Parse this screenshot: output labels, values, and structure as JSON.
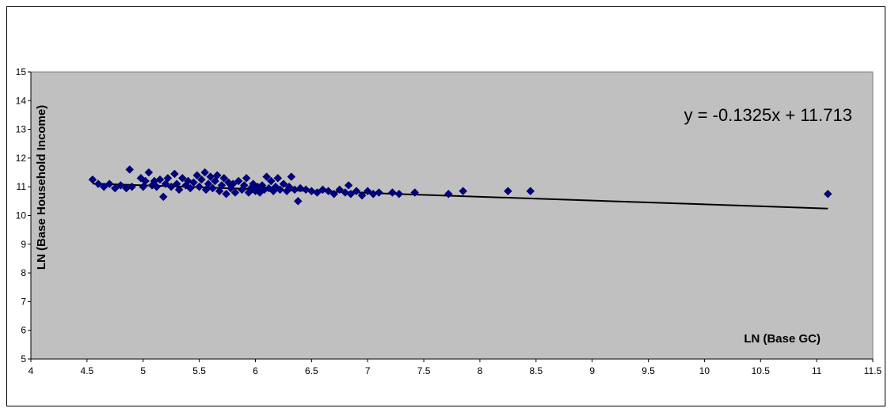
{
  "chart_data": {
    "type": "scatter",
    "title": "",
    "xlabel": "LN (Base GC)",
    "ylabel": "LN (Base Household Income)",
    "xlim": [
      4,
      11.5
    ],
    "ylim": [
      5,
      15
    ],
    "x_ticks": [
      "4",
      "4.5",
      "5",
      "5.5",
      "6",
      "6.5",
      "7",
      "7.5",
      "8",
      "8.5",
      "9",
      "9.5",
      "10",
      "10.5",
      "11",
      "11.5"
    ],
    "y_ticks": [
      "5",
      "6",
      "7",
      "8",
      "9",
      "10",
      "11",
      "12",
      "13",
      "14",
      "15"
    ],
    "grid": false,
    "legend": "none",
    "annotations": [
      {
        "text": "y = -0.1325x + 11.713"
      }
    ],
    "trendline": {
      "slope": -0.1325,
      "intercept": 11.713,
      "x_range": [
        4.55,
        11.1
      ]
    },
    "colors": {
      "plot_background": "#c0c0c0",
      "marker": "#000080",
      "trendline": "#000000"
    },
    "series": [
      {
        "marker": "diamond",
        "points": [
          [
            4.55,
            11.25
          ],
          [
            4.6,
            11.1
          ],
          [
            4.65,
            11.0
          ],
          [
            4.7,
            11.1
          ],
          [
            4.75,
            10.95
          ],
          [
            4.8,
            11.05
          ],
          [
            4.85,
            10.95
          ],
          [
            4.88,
            11.6
          ],
          [
            4.9,
            11.0
          ],
          [
            4.98,
            11.3
          ],
          [
            5.0,
            11.0
          ],
          [
            5.02,
            11.2
          ],
          [
            5.05,
            11.5
          ],
          [
            5.08,
            11.05
          ],
          [
            5.1,
            11.2
          ],
          [
            5.12,
            11.0
          ],
          [
            5.15,
            11.25
          ],
          [
            5.18,
            10.65
          ],
          [
            5.2,
            11.1
          ],
          [
            5.22,
            11.3
          ],
          [
            5.25,
            11.0
          ],
          [
            5.28,
            11.45
          ],
          [
            5.3,
            11.1
          ],
          [
            5.32,
            10.9
          ],
          [
            5.35,
            11.3
          ],
          [
            5.38,
            11.05
          ],
          [
            5.4,
            11.2
          ],
          [
            5.42,
            10.95
          ],
          [
            5.45,
            11.15
          ],
          [
            5.48,
            11.4
          ],
          [
            5.5,
            11.0
          ],
          [
            5.52,
            11.25
          ],
          [
            5.55,
            11.5
          ],
          [
            5.56,
            10.9
          ],
          [
            5.58,
            11.1
          ],
          [
            5.6,
            11.35
          ],
          [
            5.62,
            10.95
          ],
          [
            5.64,
            11.2
          ],
          [
            5.66,
            11.4
          ],
          [
            5.68,
            10.85
          ],
          [
            5.7,
            11.05
          ],
          [
            5.72,
            11.3
          ],
          [
            5.74,
            10.75
          ],
          [
            5.76,
            11.15
          ],
          [
            5.78,
            10.95
          ],
          [
            5.8,
            11.1
          ],
          [
            5.82,
            10.8
          ],
          [
            5.85,
            11.2
          ],
          [
            5.88,
            10.9
          ],
          [
            5.9,
            11.05
          ],
          [
            5.92,
            11.3
          ],
          [
            5.94,
            10.8
          ],
          [
            5.96,
            10.95
          ],
          [
            5.98,
            11.1
          ],
          [
            6.0,
            10.85
          ],
          [
            6.02,
            11.0
          ],
          [
            6.04,
            10.8
          ],
          [
            6.06,
            11.05
          ],
          [
            6.08,
            10.9
          ],
          [
            6.1,
            11.35
          ],
          [
            6.12,
            10.95
          ],
          [
            6.14,
            11.2
          ],
          [
            6.16,
            10.85
          ],
          [
            6.18,
            11.0
          ],
          [
            6.2,
            11.3
          ],
          [
            6.22,
            10.9
          ],
          [
            6.25,
            11.1
          ],
          [
            6.28,
            10.85
          ],
          [
            6.3,
            11.0
          ],
          [
            6.32,
            11.35
          ],
          [
            6.35,
            10.9
          ],
          [
            6.38,
            10.5
          ],
          [
            6.4,
            10.95
          ],
          [
            6.45,
            10.9
          ],
          [
            6.5,
            10.85
          ],
          [
            6.55,
            10.8
          ],
          [
            6.6,
            10.9
          ],
          [
            6.65,
            10.85
          ],
          [
            6.7,
            10.75
          ],
          [
            6.75,
            10.9
          ],
          [
            6.8,
            10.8
          ],
          [
            6.83,
            11.05
          ],
          [
            6.85,
            10.75
          ],
          [
            6.9,
            10.85
          ],
          [
            6.95,
            10.7
          ],
          [
            7.0,
            10.85
          ],
          [
            7.05,
            10.75
          ],
          [
            7.1,
            10.8
          ],
          [
            7.22,
            10.8
          ],
          [
            7.28,
            10.75
          ],
          [
            7.42,
            10.8
          ],
          [
            7.72,
            10.75
          ],
          [
            7.85,
            10.85
          ],
          [
            8.25,
            10.85
          ],
          [
            8.45,
            10.85
          ],
          [
            11.1,
            10.75
          ]
        ]
      }
    ]
  }
}
